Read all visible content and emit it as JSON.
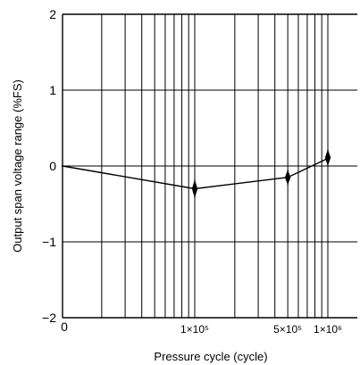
{
  "chart_data": {
    "type": "line",
    "title": "",
    "xlabel": "Pressure cycle (cycle)",
    "ylabel": "Output span voltage range (%FS)",
    "x_scale": "log",
    "y_ticks": [
      {
        "value": 2,
        "label": "2"
      },
      {
        "value": 1,
        "label": "1"
      },
      {
        "value": 0,
        "label": "0"
      },
      {
        "value": -1,
        "label": "−1"
      },
      {
        "value": -2,
        "label": "−2"
      }
    ],
    "x_ticks": [
      {
        "value": 100000,
        "label": "1×10⁵"
      },
      {
        "value": 500000,
        "label": "5×10⁵"
      },
      {
        "value": 1000000,
        "label": "1×10⁶"
      }
    ],
    "origin_label": "0",
    "ylim": [
      -2,
      2
    ],
    "grid": true,
    "series": [
      {
        "points": [
          {
            "x": 0,
            "y": 0
          },
          {
            "x": 100000,
            "y": -0.3
          },
          {
            "x": 500000,
            "y": -0.15
          },
          {
            "x": 1000000,
            "y": 0.1
          }
        ],
        "error_bars": [
          {
            "x": 100000,
            "low": -0.42,
            "high": -0.18
          },
          {
            "x": 500000,
            "low": -0.25,
            "high": -0.05
          },
          {
            "x": 1000000,
            "low": 0.0,
            "high": 0.22
          }
        ]
      }
    ]
  }
}
